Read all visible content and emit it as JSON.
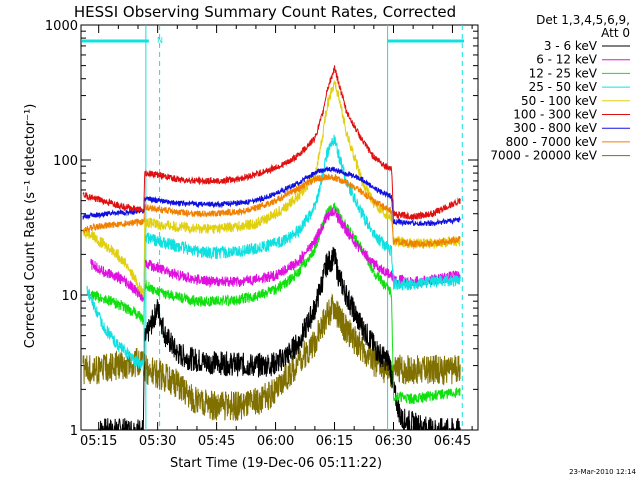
{
  "chart_data": {
    "type": "line",
    "title": "HESSI Observing Summary Count Rates, Corrected",
    "xlabel": "Start Time (19-Dec-06 05:11:22)",
    "ylabel": "Corrected Count Rate (s⁻¹ detector⁻¹)",
    "y_scale": "log",
    "ylim": [
      1,
      1000
    ],
    "xlim_minutes_after_0500": [
      10.5,
      52
    ],
    "x_tick_labels": [
      "05:15",
      "05:30",
      "05:45",
      "06:00",
      "06:15",
      "06:30",
      "06:45"
    ],
    "x_tick_minutes": [
      15,
      30,
      45,
      60,
      75,
      90,
      105
    ],
    "y_tick_labels": [
      "1",
      "10",
      "100",
      "1000"
    ],
    "y_tick_values": [
      1,
      10,
      100,
      1000
    ],
    "legend_title": [
      "Det 1,3,4,5,6,9,",
      "Att 0"
    ],
    "legend_position": "right, outside plot",
    "annotation": "N",
    "footer": "23-Mar-2010 12:14",
    "night_boundaries_minutes": [
      27,
      88.5
    ],
    "markers": [
      "05:26.5",
      "05:30.5",
      "06:29.5",
      "06:47.5"
    ],
    "series": [
      {
        "name": "3 - 6 keV",
        "color": "#000000",
        "x": [
          15,
          18,
          26.4,
          26.6,
          30,
          32,
          35,
          38,
          42,
          48,
          55,
          60,
          63,
          66,
          70,
          72,
          73,
          75,
          76,
          78,
          81,
          85,
          87,
          89,
          90,
          92,
          100,
          105,
          107
        ],
        "y": [
          1,
          1,
          1,
          4.5,
          8,
          5,
          3.7,
          3.4,
          3.2,
          3.1,
          3,
          3.1,
          3.6,
          4.5,
          8,
          13,
          17,
          19,
          14,
          10,
          6.5,
          4.2,
          3.5,
          3.2,
          2,
          1.2,
          1,
          1,
          1
        ]
      },
      {
        "name": "6 - 12 keV",
        "color": "#e010e0",
        "x": [
          13,
          16,
          20,
          24,
          26.5,
          26.7,
          30,
          35,
          40,
          45,
          50,
          55,
          60,
          63,
          66,
          70,
          72,
          73,
          75,
          76,
          78,
          82,
          85,
          88,
          89.5,
          90,
          95,
          100,
          107
        ],
        "y": [
          17,
          15,
          13.5,
          11,
          9.5,
          17,
          16,
          14,
          13,
          12.5,
          12.5,
          13,
          14,
          15.5,
          18,
          25,
          33,
          38,
          42,
          37,
          30,
          21,
          17,
          15,
          14,
          13,
          12.5,
          13,
          14
        ]
      },
      {
        "name": "12 - 25 keV",
        "color": "#10e010",
        "x": [
          13,
          16,
          20,
          24,
          26.5,
          26.7,
          30,
          35,
          40,
          45,
          50,
          55,
          60,
          63,
          66,
          70,
          72,
          73,
          75,
          76,
          78,
          82,
          85,
          88,
          89.5,
          90,
          95,
          100,
          107
        ],
        "y": [
          10,
          9.5,
          8.5,
          7.5,
          6.5,
          12,
          10.5,
          9.7,
          9,
          9,
          9.2,
          9.8,
          11,
          12.5,
          15,
          22,
          33,
          40,
          45,
          40,
          32,
          22,
          15,
          11.5,
          10.5,
          1.8,
          1.7,
          1.8,
          1.9
        ]
      },
      {
        "name": "25 - 50 keV",
        "color": "#10e0e0",
        "x": [
          12,
          14,
          16,
          18,
          20,
          22,
          24,
          26.5,
          26.7,
          30,
          35,
          40,
          45,
          50,
          55,
          60,
          63,
          66,
          70,
          72,
          73,
          75,
          76,
          78,
          82,
          85,
          88,
          89.5,
          90,
          95,
          100,
          107
        ],
        "y": [
          11,
          8,
          6,
          5,
          4.2,
          3.8,
          3.3,
          3,
          27,
          25,
          23,
          21,
          20.5,
          21,
          22,
          24,
          26,
          30,
          45,
          75,
          110,
          145,
          110,
          70,
          40,
          28,
          23,
          21,
          12,
          12,
          12.5,
          13
        ]
      },
      {
        "name": "50 - 100 keV",
        "color": "#e0d010",
        "x": [
          11,
          13,
          16,
          19,
          22,
          25,
          26.5,
          26.7,
          30,
          35,
          40,
          45,
          50,
          55,
          60,
          63,
          66,
          70,
          72,
          73,
          75,
          76,
          78,
          82,
          85,
          88,
          89.5,
          90,
          95,
          100,
          107
        ],
        "y": [
          30,
          28,
          24,
          21,
          17,
          12,
          10,
          35,
          33,
          32,
          31,
          31,
          32,
          34,
          40,
          46,
          55,
          75,
          150,
          250,
          380,
          300,
          160,
          70,
          48,
          40,
          38,
          25,
          24,
          24,
          25
        ]
      },
      {
        "name": "100 - 300 keV",
        "color": "#e01010",
        "x": [
          11,
          14,
          18,
          22,
          26.5,
          26.7,
          30,
          35,
          40,
          45,
          50,
          55,
          60,
          63,
          66,
          70,
          72,
          73,
          75,
          76,
          78,
          82,
          85,
          88,
          89.5,
          90,
          95,
          100,
          107
        ],
        "y": [
          55,
          52,
          48,
          45,
          42,
          80,
          78,
          72,
          70,
          70,
          72,
          78,
          88,
          95,
          110,
          145,
          220,
          320,
          480,
          380,
          230,
          140,
          105,
          90,
          88,
          40,
          38,
          40,
          50
        ]
      },
      {
        "name": "300 - 800 keV",
        "color": "#1010e0",
        "x": [
          11,
          14,
          18,
          22,
          26.5,
          26.7,
          30,
          35,
          40,
          45,
          50,
          55,
          60,
          63,
          66,
          70,
          72,
          73,
          75,
          76,
          78,
          82,
          85,
          88,
          89.5,
          90,
          95,
          100,
          107
        ],
        "y": [
          38,
          39,
          40,
          41,
          42,
          52,
          50,
          48,
          47,
          47,
          48,
          50,
          56,
          62,
          68,
          80,
          84,
          86,
          85,
          83,
          80,
          72,
          62,
          56,
          54,
          35,
          34,
          34,
          36
        ]
      },
      {
        "name": "800 - 7000 keV",
        "color": "#f08000",
        "x": [
          11,
          14,
          18,
          22,
          26.5,
          26.7,
          30,
          35,
          40,
          45,
          50,
          55,
          60,
          63,
          66,
          70,
          72,
          73,
          75,
          76,
          78,
          82,
          85,
          88,
          89.5,
          90,
          95,
          100,
          107
        ],
        "y": [
          30,
          32,
          33,
          34,
          35,
          45,
          43,
          41,
          40,
          40,
          41,
          44,
          50,
          56,
          62,
          72,
          74,
          75,
          74,
          72,
          68,
          58,
          50,
          44,
          42,
          25,
          24,
          24,
          26
        ]
      },
      {
        "name": "7000 - 20000 keV",
        "color": "#807000",
        "x": [
          11,
          15,
          20,
          26,
          27,
          30,
          35,
          40,
          45,
          50,
          55,
          60,
          63,
          66,
          70,
          72,
          73,
          75,
          76,
          78,
          82,
          85,
          88,
          89.5,
          90,
          95,
          100,
          107
        ],
        "y": [
          2.8,
          2.8,
          3,
          3.2,
          2.8,
          2.6,
          2.2,
          1.6,
          1.5,
          1.5,
          1.6,
          1.9,
          2.5,
          3.3,
          4.5,
          6,
          7.2,
          8,
          7,
          5.5,
          4,
          3.2,
          2.8,
          2.6,
          2.8,
          2.8,
          2.8,
          2.8
        ]
      }
    ]
  }
}
